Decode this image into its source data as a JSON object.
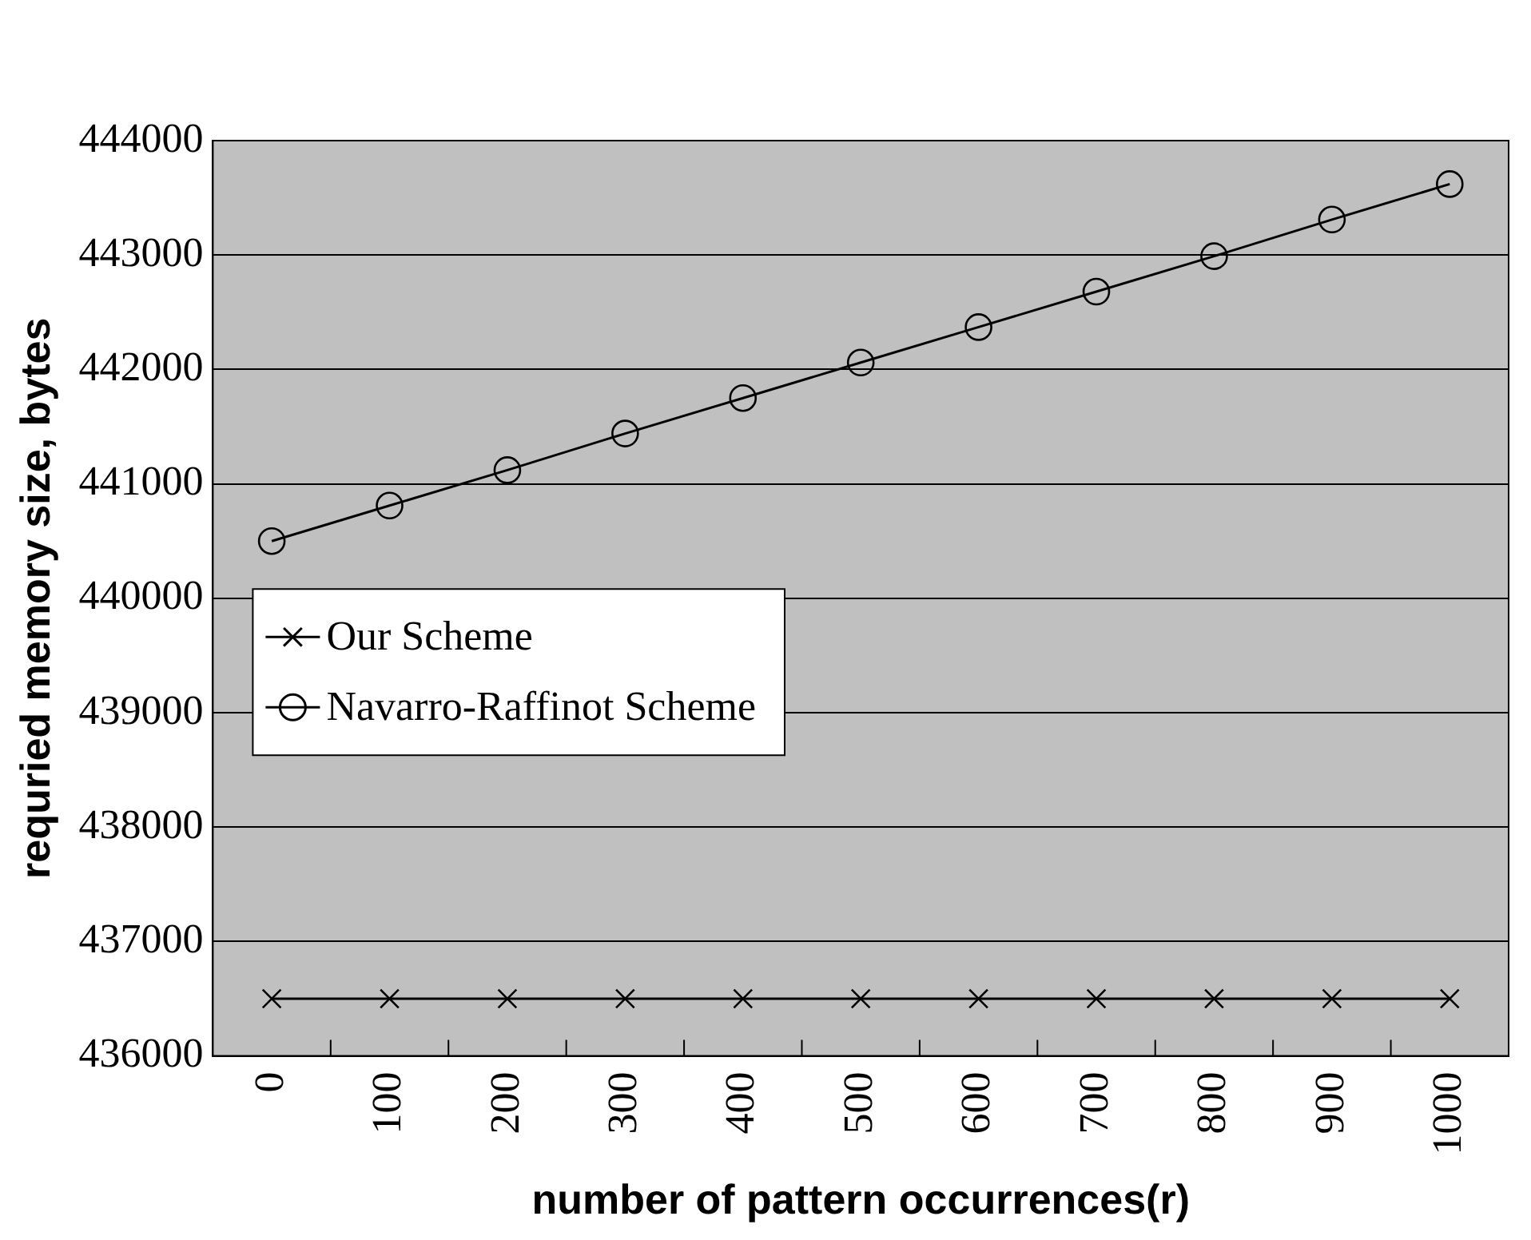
{
  "chart_data": {
    "type": "line",
    "xlabel": "number of pattern occurrences(r)",
    "ylabel": "requried memory size, bytes",
    "categories": [
      "0",
      "100",
      "200",
      "300",
      "400",
      "500",
      "600",
      "700",
      "800",
      "900",
      "1000"
    ],
    "series": [
      {
        "name": "Our Scheme",
        "color": "#000000",
        "marker": "cross",
        "values": [
          436500,
          436500,
          436500,
          436500,
          436500,
          436500,
          436500,
          436500,
          436500,
          436500,
          436500
        ]
      },
      {
        "name": "Navarro-Raffinot Scheme",
        "color": "#000000",
        "marker": "circle",
        "values": [
          440500,
          440810,
          441120,
          441440,
          441750,
          442060,
          442370,
          442680,
          442990,
          443310,
          443620
        ]
      }
    ],
    "ylim": [
      436000,
      444000
    ],
    "yticks": [
      436000,
      437000,
      438000,
      439000,
      440000,
      441000,
      442000,
      443000,
      444000
    ],
    "grid": "y",
    "legend": "left",
    "line_style": "solid"
  }
}
